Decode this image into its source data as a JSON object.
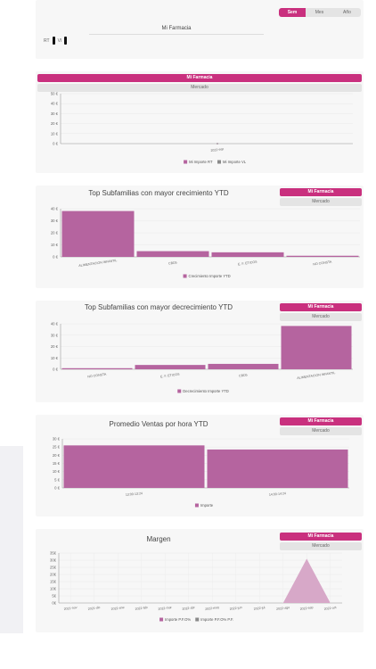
{
  "colors": {
    "accent": "#c9307e",
    "bar": "#b5649f",
    "bar_light": "#d7a8c8",
    "legend_gray": "#8a8a8a"
  },
  "period_selector": {
    "options": [
      "Sem",
      "Mes",
      "Año"
    ],
    "selected": "Sem"
  },
  "mini_panel": {
    "title": "Mi Farmacia",
    "legend": [
      "RT",
      "VI"
    ]
  },
  "scope_toggle": {
    "primary": "Mi Farmacia",
    "secondary": "Mercado"
  },
  "chart_data": [
    {
      "type": "line",
      "title": "",
      "x": [
        "2022-sep"
      ],
      "yticks": [
        "50 €",
        "40 €",
        "30 €",
        "20 €",
        "10 €",
        "0 €"
      ],
      "ylim": [
        0,
        50
      ],
      "series": [
        {
          "name": "Mi Importe RT",
          "values": [
            0
          ]
        },
        {
          "name": "Mi Importe VL",
          "values": [
            0
          ]
        }
      ]
    },
    {
      "type": "bar",
      "title": "Top Subfamilias con mayor crecimiento YTD",
      "categories": [
        "ALIMENTACION INFANTIL",
        "CBD5",
        "E. F. ETICOS",
        "NO CONSTA"
      ],
      "values": [
        40,
        5,
        4,
        1
      ],
      "yticks": [
        "40 €",
        "30 €",
        "20 €",
        "10 €",
        "0 €"
      ],
      "ylim": [
        0,
        42
      ],
      "series": [
        {
          "name": "Crecimiento Importe YTD"
        }
      ]
    },
    {
      "type": "bar",
      "title": "Top Subfamilias con mayor decrecimiento YTD",
      "categories": [
        "NO CONSTA",
        "E. F. ETICOS",
        "CBD5",
        "ALIMENTACION INFANTIL"
      ],
      "values": [
        1,
        4,
        5,
        40
      ],
      "yticks": [
        "40 €",
        "30 €",
        "20 €",
        "10 €",
        "0 €"
      ],
      "ylim": [
        0,
        42
      ],
      "series": [
        {
          "name": "Decrecimiento Importe YTD"
        }
      ]
    },
    {
      "type": "bar",
      "title": "Promedio Ventas por hora YTD",
      "categories": [
        "13:00-13:24",
        "14:00-14:24"
      ],
      "values": [
        26,
        23.5
      ],
      "yticks": [
        "30 €",
        "25 €",
        "20 €",
        "15 €",
        "10 €",
        "5 €",
        "0 €"
      ],
      "ylim": [
        0,
        30
      ],
      "series": [
        {
          "name": "Importe"
        }
      ]
    },
    {
      "type": "area",
      "title": "Margen",
      "x": [
        "2021-nov",
        "2021-dic",
        "2022-ene",
        "2022-feb",
        "2022-mar",
        "2022-abr",
        "2022-may",
        "2022-jun",
        "2022-jul",
        "2022-ago",
        "2022-sep",
        "2022-oct"
      ],
      "yticks": [
        "35€",
        "30€",
        "25€",
        "20€",
        "15€",
        "10€",
        "5€",
        "0€"
      ],
      "ylim": [
        0,
        35
      ],
      "series": [
        {
          "name": "Importe P.F.O%",
          "values": [
            0,
            0,
            0,
            0,
            0,
            0,
            0,
            0,
            0,
            0,
            31,
            0
          ]
        },
        {
          "name": "Importe P.F.O% P.F.",
          "values": [
            0,
            0,
            0,
            0,
            0,
            0,
            0,
            0,
            0,
            0,
            0,
            0
          ]
        }
      ]
    }
  ]
}
